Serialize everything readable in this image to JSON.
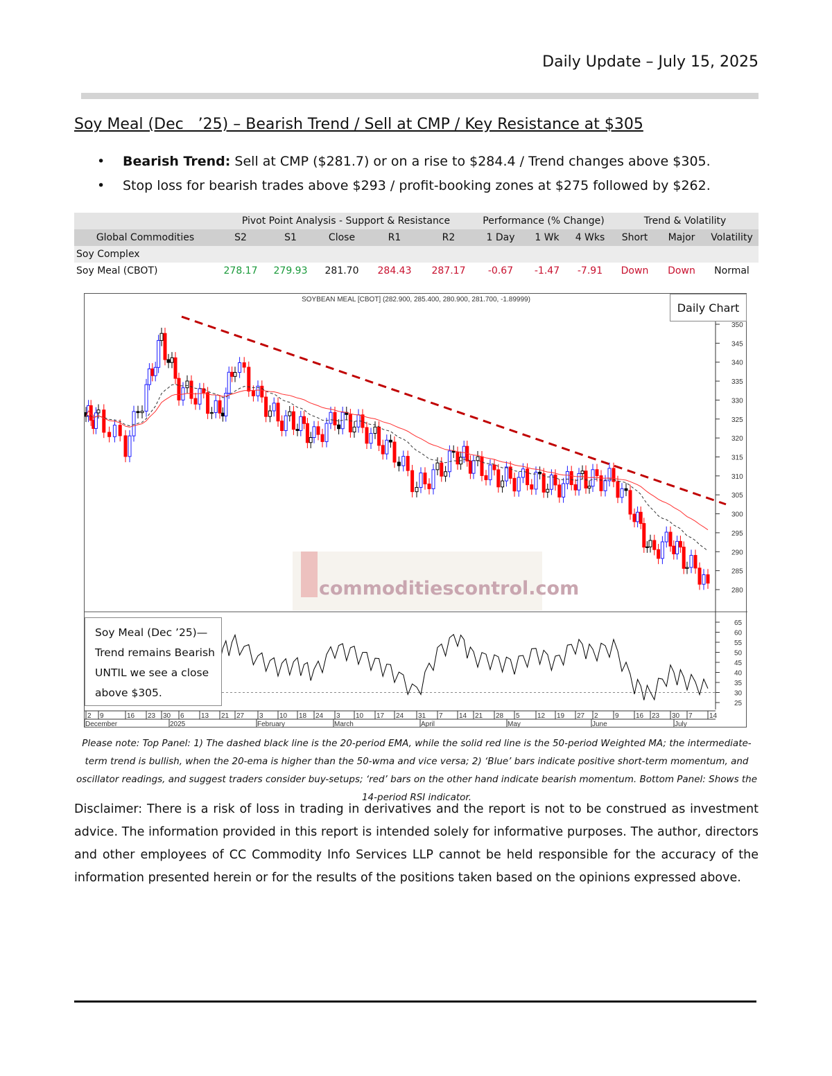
{
  "header": {
    "title": "Daily Update – July 15, 2025"
  },
  "headline": "Soy Meal (Dec   ’25) – Bearish Trend / Sell at CMP / Key Resistance at $305",
  "bullets": [
    {
      "bold": "Bearish Trend:",
      "text": " Sell at CMP ($281.7) or on a rise to $284.4 / Trend changes above $305."
    },
    {
      "bold": "",
      "text": "Stop loss for bearish trades above $293 / profit-booking zones at $275 followed by $262."
    }
  ],
  "table": {
    "groups": [
      "Pivot Point Analysis - Support & Resistance",
      "Performance (% Change)",
      "Trend & Volatility"
    ],
    "columns": [
      "Global Commodities",
      "S2",
      "S1",
      "Close",
      "R1",
      "R2",
      "1 Day",
      "1 Wk",
      "4 Wks",
      "Short",
      "Major",
      "Volatility"
    ],
    "section": "Soy Complex",
    "row": [
      "Soy Meal (CBOT)",
      "278.17",
      "279.93",
      "281.70",
      "284.43",
      "287.17",
      "-0.67",
      "-1.47",
      "-7.91",
      "Down",
      "Down",
      "Normal"
    ],
    "colors": {
      "support": "#1a9a3a",
      "resistance": "#c8102e"
    }
  },
  "chart_data": {
    "type": "candlestick",
    "title": "SOYBEAN MEAL [CBOT] (282.900, 285.400, 280.900, 281.700, -1.89999)",
    "label": "Daily Chart",
    "x_ticks": [
      "2",
      "9",
      "16",
      "23",
      "30",
      "6",
      "13",
      "21",
      "27",
      "3",
      "10",
      "18",
      "24",
      "3",
      "10",
      "17",
      "24",
      "31",
      "7",
      "14",
      "21",
      "28",
      "5",
      "12",
      "19",
      "27",
      "2",
      "9",
      "16",
      "23",
      "30",
      "7",
      "14"
    ],
    "x_months": [
      "December",
      "2025",
      "February",
      "March",
      "April",
      "May",
      "June",
      "July"
    ],
    "weekly_close": [
      325.7,
      325,
      318,
      333,
      346,
      333,
      331,
      326,
      340,
      331,
      325,
      324,
      320,
      325,
      324,
      320,
      316,
      307,
      311,
      316,
      313,
      310,
      309,
      309,
      307,
      309,
      309,
      309,
      300,
      290,
      293,
      287,
      282.7
    ],
    "last_close": 281.7,
    "ylim": [
      278,
      352
    ],
    "y_ticks": [
      280,
      285,
      290,
      295,
      300,
      305,
      310,
      315,
      320,
      325,
      330,
      335,
      340,
      345,
      350
    ],
    "overlays": [
      "20-period EMA (dashed black)",
      "50-period WMA (solid red)",
      "Downtrend resistance line (dashed red)"
    ],
    "trendline": {
      "from": 352,
      "to": 302.5
    },
    "rsi": {
      "period": 14,
      "values": [
        55,
        50,
        40,
        55,
        60,
        52,
        56,
        50,
        55,
        47,
        43,
        44,
        40,
        52,
        50,
        45,
        40,
        30,
        50,
        58,
        48,
        46,
        44,
        50,
        45,
        54,
        50,
        53,
        34,
        29,
        40,
        36,
        32
      ],
      "ylim": [
        22,
        68
      ],
      "y_ticks": [
        25,
        30,
        35,
        40,
        45,
        50,
        55,
        60,
        65
      ],
      "reference": 30
    },
    "colors": {
      "up": "#1a1aff",
      "down": "#ff0000",
      "neutral": "#000000",
      "wma": "#ff3030",
      "trend": "#c00000"
    },
    "watermark": "commoditiescontrol.com",
    "note": "Soy Meal (Dec   ’25)—\nTrend remains Bearish\nUNTIL we see a close\nabove $305."
  },
  "footnote": "Please note: Top Panel: 1) The dashed black line is the 20-period EMA, while the solid red line is the 50-period Weighted MA; the intermediate-term trend is bullish, when the 20-ema is higher than the 50-wma and vice versa; 2)   ‘Blue’   bars indicate positive short-term momentum, and oscillator readings, and suggest traders consider buy-setups;   ‘red’   bars on the other hand indicate bearish momentum. Bottom Panel: Shows the 14-period RSI indicator.",
  "disclaimer": "Disclaimer: There is a risk of loss in trading in derivatives and the report is not to be construed as investment advice. The information provided in this report is intended solely for informative purposes. The author, directors and other employees of CC Commodity Info Services LLP cannot be held responsible for the accuracy of the information presented herein or for the results of the positions taken based on the opinions expressed above."
}
